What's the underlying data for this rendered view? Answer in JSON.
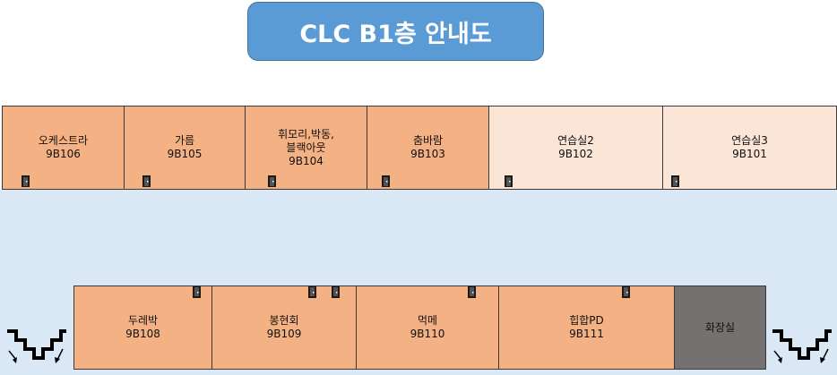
{
  "title": "CLC B1층 안내도",
  "top_rooms": [
    {
      "name": "오케스트라",
      "code": "9B106"
    },
    {
      "name": "가름",
      "code": "9B105"
    },
    {
      "name": "휘모리,박동,\n블랙아웃",
      "code": "9B104"
    },
    {
      "name": "춤바람",
      "code": "9B103"
    },
    {
      "name": "연습실2",
      "code": "9B102"
    },
    {
      "name": "연습실3",
      "code": "9B101"
    }
  ],
  "bottom_rooms": [
    {
      "name": "두레박",
      "code": "9B108"
    },
    {
      "name": "봉현회",
      "code": "9B109"
    },
    {
      "name": "먹메",
      "code": "9B110"
    },
    {
      "name": "힙합PD",
      "code": "9B111"
    },
    {
      "name": "화장실",
      "code": ""
    }
  ],
  "colors": {
    "title_bg": "#5b9bd5",
    "room_main": "#f4b183",
    "room_light": "#fbe5d6",
    "restroom": "#767171",
    "hallway": "#dae8f5"
  },
  "icons": [
    "door-icon",
    "stairs-icon"
  ]
}
